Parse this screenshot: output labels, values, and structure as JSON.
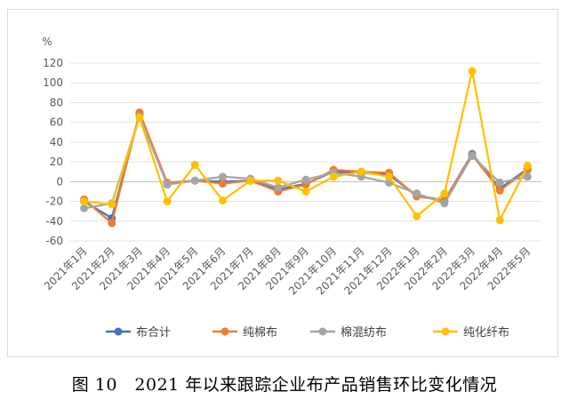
{
  "caption": "图 10　2021 年以来跟踪企业布产品销售环比变化情况",
  "chart_data": {
    "type": "line",
    "ylabel": "%",
    "ylim": [
      -60,
      120
    ],
    "yticks": [
      -60,
      -40,
      -20,
      0,
      20,
      40,
      60,
      80,
      100,
      120
    ],
    "grid": true,
    "legend_position": "bottom",
    "categories": [
      "2021年1月",
      "2021年2月",
      "2021年3月",
      "2021年4月",
      "2021年5月",
      "2021年6月",
      "2021年7月",
      "2021年8月",
      "2021年9月",
      "2021年10月",
      "2021年11月",
      "2021年12月",
      "2022年1月",
      "2022年2月",
      "2022年3月",
      "2022年4月",
      "2022年5月"
    ],
    "series": [
      {
        "name": "布合计",
        "color": "#4472C4",
        "values": [
          -20,
          -37,
          68,
          -2,
          1,
          0,
          1,
          -8,
          -2,
          10,
          9,
          7,
          -14,
          -19,
          28,
          -7,
          13
        ]
      },
      {
        "name": "纯棉布",
        "color": "#ED7D31",
        "values": [
          -18,
          -42,
          70,
          -1,
          1,
          -2,
          1,
          -10,
          -3,
          12,
          10,
          9,
          -15,
          -19,
          27,
          -9,
          12
        ]
      },
      {
        "name": "棉混纺布",
        "color": "#A5A5A5",
        "values": [
          -27,
          -22,
          66,
          -3,
          1,
          5,
          3,
          -6,
          2,
          9,
          5,
          -1,
          -12,
          -22,
          26,
          -1,
          5
        ]
      },
      {
        "name": "纯化纤布",
        "color": "#FFC000",
        "values": [
          -20,
          -23,
          65,
          -20,
          17,
          -19,
          1,
          1,
          -10,
          5,
          10,
          5,
          -35,
          -12,
          112,
          -39,
          16
        ]
      }
    ]
  }
}
